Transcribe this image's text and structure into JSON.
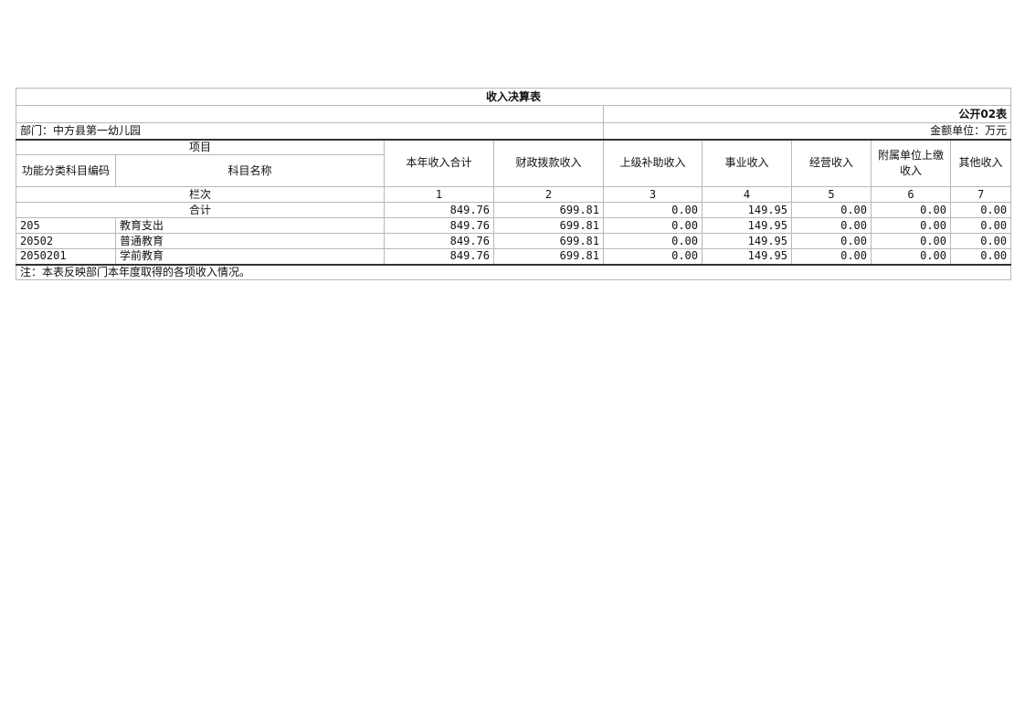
{
  "title": "收入决算表",
  "form_no": "公开02表",
  "department": "部门：中方县第一幼儿园",
  "unit": "金额单位：万元",
  "header": {
    "item": "项目",
    "code": "功能分类科目编码",
    "name": "科目名称",
    "columns": [
      "本年收入合计",
      "财政拨款收入",
      "上级补助收入",
      "事业收入",
      "经营收入",
      "附属单位上缴收入",
      "其他收入"
    ]
  },
  "column_index_label": "栏次",
  "column_indices": [
    "1",
    "2",
    "3",
    "4",
    "5",
    "6",
    "7"
  ],
  "total": {
    "label": "合计",
    "values": [
      "849.76",
      "699.81",
      "0.00",
      "149.95",
      "0.00",
      "0.00",
      "0.00"
    ]
  },
  "rows": [
    {
      "code": "205",
      "name": "教育支出",
      "values": [
        "849.76",
        "699.81",
        "0.00",
        "149.95",
        "0.00",
        "0.00",
        "0.00"
      ]
    },
    {
      "code": "20502",
      "name": "普通教育",
      "values": [
        "849.76",
        "699.81",
        "0.00",
        "149.95",
        "0.00",
        "0.00",
        "0.00"
      ]
    },
    {
      "code": "2050201",
      "name": "学前教育",
      "values": [
        "849.76",
        "699.81",
        "0.00",
        "149.95",
        "0.00",
        "0.00",
        "0.00"
      ]
    }
  ],
  "note": "注：本表反映部门本年度取得的各项收入情况。"
}
